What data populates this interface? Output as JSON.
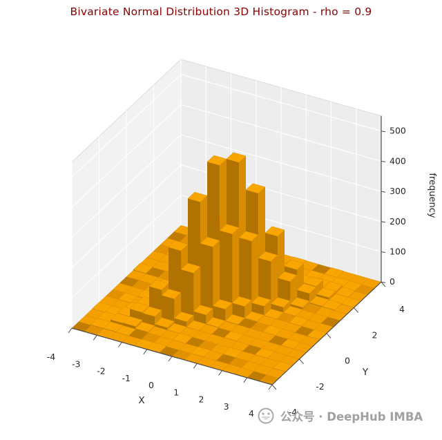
{
  "title": "Bivariate Normal Distribution 3D Histogram - rho = 0.9",
  "title_color": "#8b0000",
  "watermark": {
    "icon": "grinning-face",
    "text": "公众号 · DeepHub IMBA"
  },
  "chart_data": {
    "type": "bar",
    "subtype": "3d-histogram",
    "title": "Bivariate Normal Distribution 3D Histogram - rho = 0.9",
    "xlabel": "X",
    "ylabel": "Y",
    "zlabel": "frequency",
    "xlim": [
      -4,
      4
    ],
    "ylim": [
      -4,
      4
    ],
    "zlim": [
      0,
      550
    ],
    "x_ticks": [
      -4,
      -3,
      -2,
      -1,
      0,
      1,
      2,
      3,
      4
    ],
    "y_ticks": [
      -4,
      -2,
      0,
      2,
      4
    ],
    "z_ticks": [
      0,
      100,
      200,
      300,
      400,
      500
    ],
    "grid": true,
    "legend": "none",
    "bin_width": 0.5,
    "x_bin_centers": [
      -3.75,
      -3.25,
      -2.75,
      -2.25,
      -1.75,
      -1.25,
      -0.75,
      -0.25,
      0.25,
      0.75,
      1.25,
      1.75,
      2.25,
      2.75,
      3.25,
      3.75
    ],
    "y_bin_centers": [
      -3.75,
      -3.25,
      -2.75,
      -2.25,
      -1.75,
      -1.25,
      -0.75,
      -0.25,
      0.25,
      0.75,
      1.25,
      1.75,
      2.25,
      2.75,
      3.25,
      3.75
    ],
    "counts": [
      [
        0,
        0,
        0,
        1,
        0,
        0,
        0,
        0,
        0,
        2,
        0,
        0,
        0,
        0,
        0,
        0
      ],
      [
        0,
        2,
        2,
        1,
        0,
        1,
        0,
        0,
        0,
        0,
        0,
        0,
        1,
        0,
        0,
        0
      ],
      [
        0,
        2,
        9,
        10,
        3,
        0,
        2,
        0,
        0,
        0,
        1,
        0,
        0,
        0,
        1,
        0
      ],
      [
        0,
        1,
        10,
        35,
        33,
        8,
        1,
        0,
        0,
        0,
        1,
        0,
        0,
        0,
        0,
        0
      ],
      [
        0,
        0,
        3,
        33,
        100,
        82,
        18,
        1,
        1,
        0,
        0,
        0,
        0,
        2,
        0,
        0
      ],
      [
        1,
        0,
        0,
        8,
        82,
        220,
        158,
        31,
        2,
        1,
        0,
        0,
        0,
        0,
        0,
        0
      ],
      [
        2,
        0,
        0,
        1,
        18,
        158,
        372,
        235,
        40,
        2,
        0,
        0,
        1,
        0,
        0,
        0
      ],
      [
        0,
        0,
        1,
        0,
        1,
        31,
        235,
        484,
        268,
        40,
        2,
        0,
        0,
        1,
        0,
        0
      ],
      [
        0,
        0,
        0,
        0,
        0,
        2,
        40,
        268,
        484,
        235,
        31,
        1,
        0,
        0,
        2,
        0
      ],
      [
        0,
        1,
        0,
        0,
        0,
        0,
        2,
        40,
        235,
        372,
        158,
        18,
        1,
        0,
        0,
        1
      ],
      [
        0,
        0,
        0,
        0,
        1,
        0,
        0,
        2,
        31,
        158,
        220,
        82,
        8,
        1,
        0,
        0
      ],
      [
        0,
        0,
        1,
        0,
        0,
        0,
        0,
        0,
        1,
        18,
        82,
        100,
        33,
        3,
        1,
        0
      ],
      [
        0,
        0,
        0,
        0,
        0,
        0,
        1,
        0,
        0,
        1,
        8,
        33,
        35,
        10,
        1,
        1
      ],
      [
        0,
        0,
        0,
        1,
        0,
        0,
        0,
        0,
        1,
        0,
        0,
        3,
        10,
        9,
        2,
        0
      ],
      [
        0,
        0,
        0,
        0,
        0,
        1,
        0,
        0,
        0,
        0,
        0,
        2,
        1,
        2,
        2,
        0
      ],
      [
        0,
        0,
        1,
        0,
        0,
        0,
        0,
        1,
        0,
        0,
        0,
        0,
        1,
        0,
        0,
        0
      ]
    ],
    "colors": {
      "bar_top": "#f9a602",
      "bar_side_dark": "#b07200",
      "bar_side_mid": "#d88c00",
      "tile": "#f5a001",
      "tile_dark": "#c07c00",
      "tile_mid": "#e29200",
      "tile_edge": "#cf8600",
      "pane_left": "#f2f2f2",
      "pane_right": "#ededed",
      "pane_floor": "#f0f0f0",
      "grid_line": "#ffffff",
      "axis_line": "#4a4a4a",
      "tick_text": "#262626"
    }
  }
}
